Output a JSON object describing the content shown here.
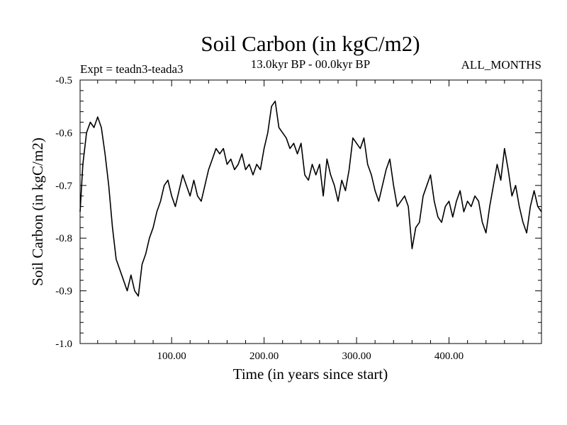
{
  "chart_data": {
    "type": "line",
    "title": "Soil Carbon (in kgC/m2)",
    "subtitle": "13.0kyr BP - 00.0kyr BP",
    "experiment": "Expt = teadn3-teada3",
    "months": "ALL_MONTHS",
    "xlabel": "Time (in years since start)",
    "ylabel": "Soil Carbon (in kgC/m2)",
    "xlim": [
      1,
      500
    ],
    "ylim": [
      -1.0,
      -0.5
    ],
    "x_ticks": [
      100,
      200,
      300,
      400
    ],
    "x_tick_labels": [
      "100.00",
      "200.00",
      "300.00",
      "400.00"
    ],
    "y_ticks": [
      -0.5,
      -0.6,
      -0.7,
      -0.8,
      -0.9,
      -1.0
    ],
    "y_tick_labels": [
      "-0.5",
      "-0.6",
      "-0.7",
      "-0.8",
      "-0.9",
      "-1.0"
    ],
    "grid": false,
    "line_color": "#000000",
    "series": [
      {
        "name": "Soil Carbon",
        "x": [
          1,
          4,
          8,
          12,
          16,
          20,
          24,
          28,
          32,
          36,
          40,
          44,
          48,
          52,
          56,
          60,
          64,
          68,
          72,
          76,
          80,
          84,
          88,
          92,
          96,
          100,
          104,
          108,
          112,
          116,
          120,
          124,
          128,
          132,
          136,
          140,
          144,
          148,
          152,
          156,
          160,
          164,
          168,
          172,
          176,
          180,
          184,
          188,
          192,
          196,
          200,
          204,
          208,
          212,
          216,
          220,
          224,
          228,
          232,
          236,
          240,
          244,
          248,
          252,
          256,
          260,
          264,
          268,
          272,
          276,
          280,
          284,
          288,
          292,
          296,
          300,
          304,
          308,
          312,
          316,
          320,
          324,
          328,
          332,
          336,
          340,
          344,
          348,
          352,
          356,
          360,
          364,
          368,
          372,
          376,
          380,
          384,
          388,
          392,
          396,
          400,
          404,
          408,
          412,
          416,
          420,
          424,
          428,
          432,
          436,
          440,
          444,
          448,
          452,
          456,
          460,
          464,
          468,
          472,
          476,
          480,
          484,
          488,
          492,
          496,
          500
        ],
        "values": [
          -0.75,
          -0.66,
          -0.6,
          -0.58,
          -0.59,
          -0.57,
          -0.59,
          -0.64,
          -0.7,
          -0.78,
          -0.84,
          -0.86,
          -0.88,
          -0.9,
          -0.87,
          -0.9,
          -0.91,
          -0.85,
          -0.83,
          -0.8,
          -0.78,
          -0.75,
          -0.73,
          -0.7,
          -0.69,
          -0.72,
          -0.74,
          -0.71,
          -0.68,
          -0.7,
          -0.72,
          -0.69,
          -0.72,
          -0.73,
          -0.7,
          -0.67,
          -0.65,
          -0.63,
          -0.64,
          -0.63,
          -0.66,
          -0.65,
          -0.67,
          -0.66,
          -0.64,
          -0.67,
          -0.66,
          -0.68,
          -0.66,
          -0.67,
          -0.63,
          -0.6,
          -0.55,
          -0.54,
          -0.59,
          -0.6,
          -0.61,
          -0.63,
          -0.62,
          -0.64,
          -0.62,
          -0.68,
          -0.69,
          -0.66,
          -0.68,
          -0.66,
          -0.72,
          -0.65,
          -0.68,
          -0.7,
          -0.73,
          -0.69,
          -0.71,
          -0.67,
          -0.61,
          -0.62,
          -0.63,
          -0.61,
          -0.66,
          -0.68,
          -0.71,
          -0.73,
          -0.7,
          -0.67,
          -0.65,
          -0.7,
          -0.74,
          -0.73,
          -0.72,
          -0.74,
          -0.82,
          -0.78,
          -0.77,
          -0.72,
          -0.7,
          -0.68,
          -0.73,
          -0.76,
          -0.77,
          -0.74,
          -0.73,
          -0.76,
          -0.73,
          -0.71,
          -0.75,
          -0.73,
          -0.74,
          -0.72,
          -0.73,
          -0.77,
          -0.79,
          -0.74,
          -0.7,
          -0.66,
          -0.69,
          -0.63,
          -0.67,
          -0.72,
          -0.7,
          -0.74,
          -0.77,
          -0.79,
          -0.74,
          -0.71,
          -0.74,
          -0.75
        ]
      }
    ]
  }
}
